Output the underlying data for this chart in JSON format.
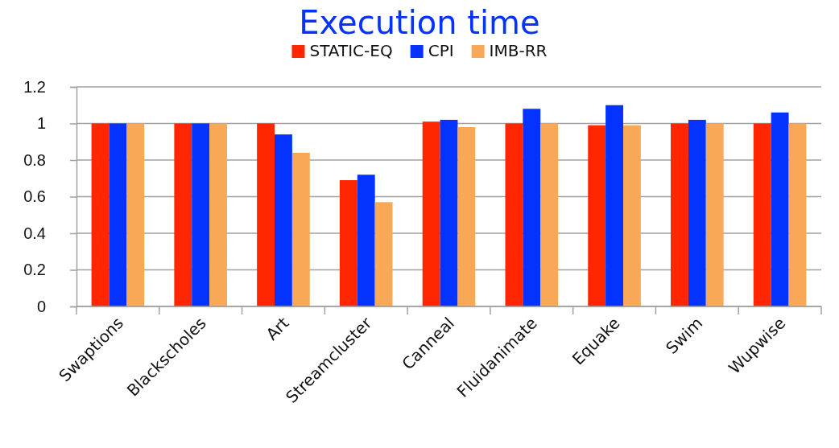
{
  "chart_data": {
    "type": "bar",
    "title": "Execution time",
    "categories": [
      "Swaptions",
      "Blackscholes",
      "Art",
      "Streamcluster",
      "Canneal",
      "Fluidanimate",
      "Equake",
      "Swim",
      "Wupwise"
    ],
    "series": [
      {
        "name": "STATIC-EQ",
        "color": "#ff2600",
        "values": [
          1,
          1,
          1,
          0.69,
          1.01,
          1,
          0.99,
          1,
          1
        ]
      },
      {
        "name": "CPI",
        "color": "#0433ff",
        "values": [
          1,
          1,
          0.94,
          0.72,
          1.02,
          1.08,
          1.1,
          1.02,
          1.06
        ]
      },
      {
        "name": "IMB-RR",
        "color": "#f9a857",
        "values": [
          1,
          1,
          0.84,
          0.57,
          0.98,
          1,
          0.99,
          1,
          1
        ]
      }
    ],
    "ylim": [
      0,
      1.2
    ],
    "yticks": [
      0,
      0.2,
      0.4,
      0.6,
      0.8,
      1,
      1.2
    ],
    "grid": "y",
    "legend": "top"
  }
}
